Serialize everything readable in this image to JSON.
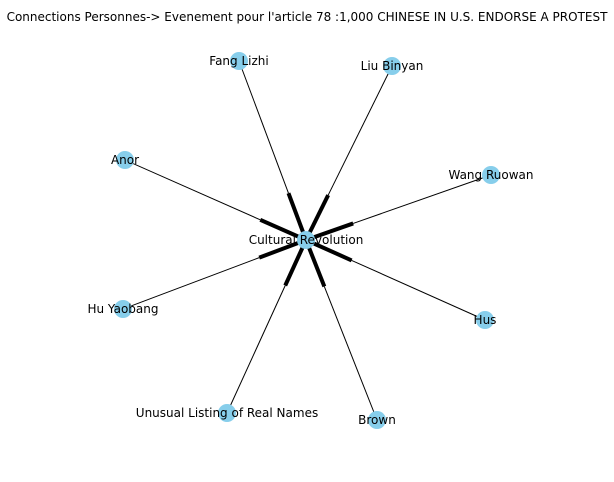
{
  "title": "Connections Personnes-> Evenement pour l'article 78 :1,000 CHINESE IN U.S. ENDORSE A PROTEST",
  "graph": {
    "center": {
      "id": "cultural-revolution",
      "label": "Cultural Revolution"
    },
    "nodes": [
      {
        "id": "fang-lizhi",
        "label": "Fang Lizhi"
      },
      {
        "id": "liu-binyan",
        "label": "Liu Binyan"
      },
      {
        "id": "anor",
        "label": "Anor"
      },
      {
        "id": "wang-ruowan",
        "label": "Wang Ruowan"
      },
      {
        "id": "hu-yaobang",
        "label": "Hu Yaobang"
      },
      {
        "id": "hus",
        "label": "Hus"
      },
      {
        "id": "unusual-listing",
        "label": "Unusual Listing of Real Names"
      },
      {
        "id": "brown",
        "label": "Brown"
      }
    ],
    "edges": [
      {
        "from": "fang-lizhi",
        "to": "cultural-revolution"
      },
      {
        "from": "liu-binyan",
        "to": "cultural-revolution"
      },
      {
        "from": "anor",
        "to": "cultural-revolution"
      },
      {
        "from": "wang-ruowan",
        "to": "cultural-revolution"
      },
      {
        "from": "hu-yaobang",
        "to": "cultural-revolution"
      },
      {
        "from": "hus",
        "to": "cultural-revolution"
      },
      {
        "from": "unusual-listing",
        "to": "cultural-revolution"
      },
      {
        "from": "brown",
        "to": "cultural-revolution"
      }
    ],
    "node_color": "#87ceeb",
    "edge_color": "#000000"
  }
}
